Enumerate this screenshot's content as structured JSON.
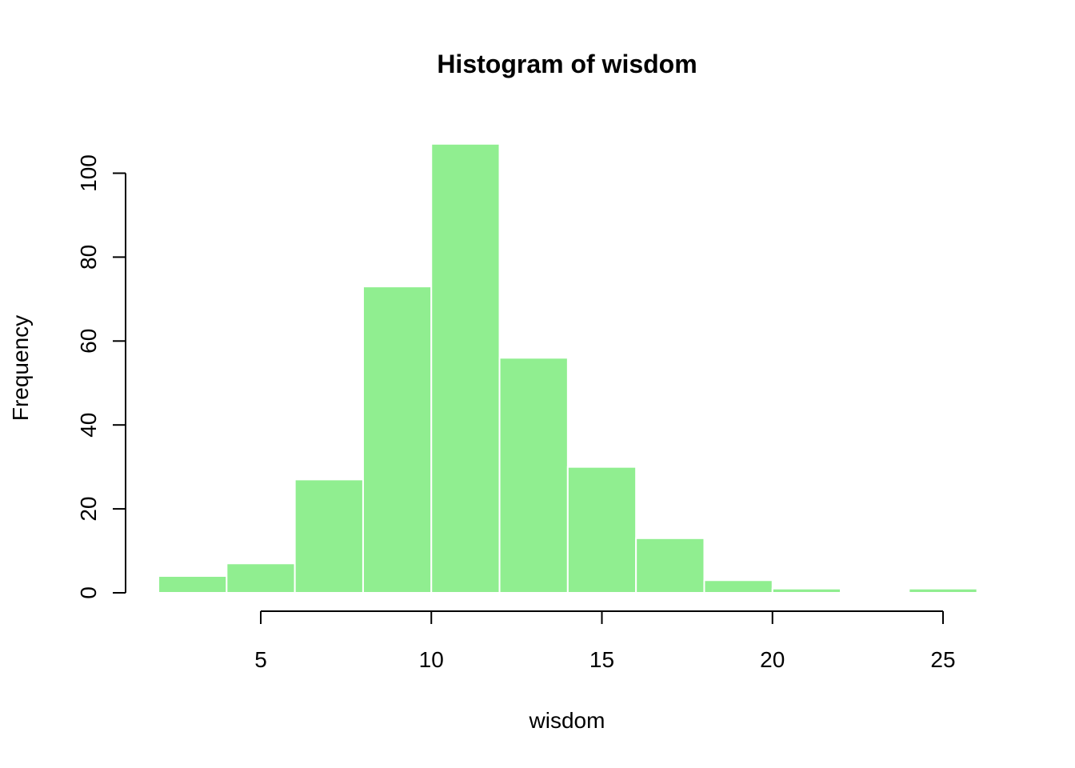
{
  "chart_data": {
    "type": "bar",
    "title": "Histogram of wisdom",
    "xlabel": "wisdom",
    "ylabel": "Frequency",
    "bar_color": "#90EE90",
    "bar_border_color": "#FFFFFF",
    "bins": [
      {
        "x0": 2,
        "x1": 4,
        "count": 4
      },
      {
        "x0": 4,
        "x1": 6,
        "count": 7
      },
      {
        "x0": 6,
        "x1": 8,
        "count": 27
      },
      {
        "x0": 8,
        "x1": 10,
        "count": 73
      },
      {
        "x0": 10,
        "x1": 12,
        "count": 107
      },
      {
        "x0": 12,
        "x1": 14,
        "count": 56
      },
      {
        "x0": 14,
        "x1": 16,
        "count": 30
      },
      {
        "x0": 16,
        "x1": 18,
        "count": 13
      },
      {
        "x0": 18,
        "x1": 20,
        "count": 3
      },
      {
        "x0": 20,
        "x1": 22,
        "count": 1
      },
      {
        "x0": 22,
        "x1": 24,
        "count": 0
      },
      {
        "x0": 24,
        "x1": 26,
        "count": 1
      }
    ],
    "xticks": [
      5,
      10,
      15,
      20,
      25
    ],
    "yticks": [
      0,
      20,
      40,
      60,
      80,
      100
    ],
    "xlim": [
      2,
      26
    ],
    "ylim": [
      0,
      107
    ]
  }
}
